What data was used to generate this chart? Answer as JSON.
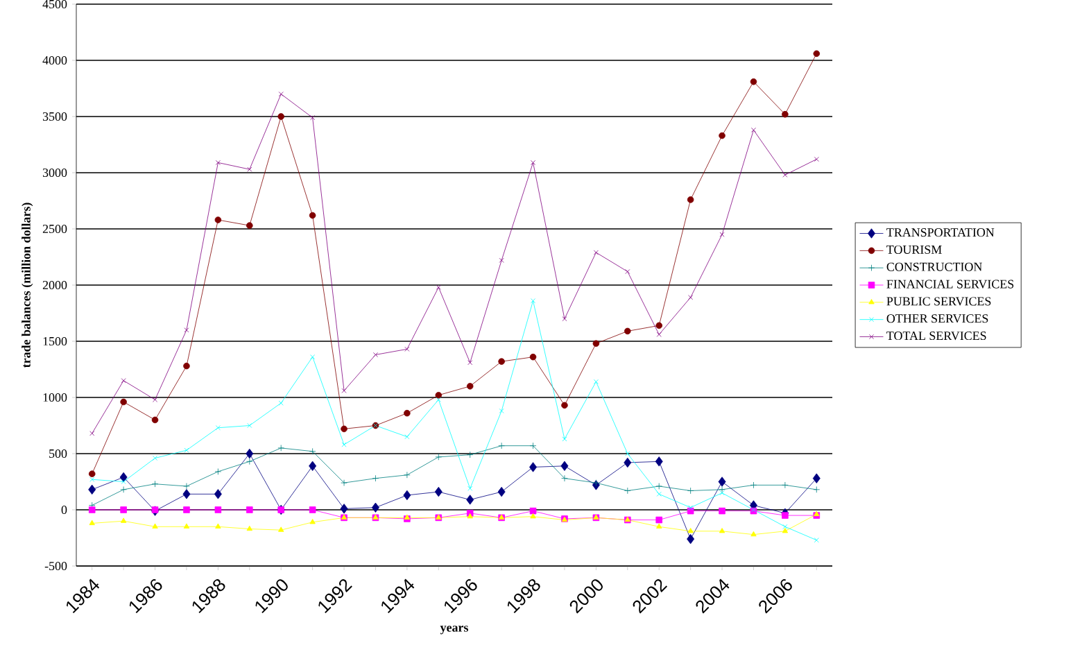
{
  "chart_data": {
    "type": "line",
    "xlabel": "years",
    "ylabel": "trade balances (million dollars)",
    "categories": [
      "1984",
      null,
      "1986",
      null,
      "1988",
      null,
      "1990",
      null,
      "1992",
      null,
      "1994",
      null,
      "1996",
      null,
      "1998",
      null,
      "2000",
      null,
      "2002",
      null,
      "2004",
      null,
      "2006",
      null
    ],
    "ylim": [
      -500,
      4500
    ],
    "yticks": [
      -500,
      0,
      500,
      1000,
      1500,
      2000,
      2500,
      3000,
      3500,
      4000,
      4500
    ],
    "grid": "y",
    "legend": "right",
    "line_style": "solid",
    "series": [
      {
        "name": "TRANSPORTATION",
        "color": "#000080",
        "marker": "diamond",
        "values": [
          180,
          290,
          -10,
          140,
          140,
          500,
          0,
          390,
          10,
          20,
          130,
          160,
          90,
          160,
          380,
          390,
          220,
          420,
          430,
          -260,
          250,
          40,
          -30,
          280
        ]
      },
      {
        "name": "TOURISM",
        "color": "#800000",
        "marker": "circle",
        "values": [
          320,
          960,
          800,
          1280,
          2580,
          2530,
          3500,
          2620,
          720,
          750,
          860,
          1020,
          1100,
          1320,
          1360,
          930,
          1480,
          1590,
          1640,
          2760,
          3330,
          3810,
          3520,
          4060
        ]
      },
      {
        "name": "CONSTRUCTION",
        "color": "#008080",
        "marker": "plus",
        "values": [
          40,
          180,
          230,
          210,
          340,
          430,
          550,
          520,
          240,
          280,
          310,
          470,
          490,
          570,
          570,
          280,
          240,
          170,
          210,
          170,
          180,
          220,
          220,
          180
        ]
      },
      {
        "name": "FINANCIAL SERVICES",
        "color": "#ff00ff",
        "marker": "square",
        "values": [
          0,
          0,
          0,
          0,
          0,
          0,
          0,
          0,
          -70,
          -70,
          -80,
          -70,
          -30,
          -70,
          -10,
          -80,
          -70,
          -90,
          -90,
          -10,
          -10,
          -10,
          -50,
          -50
        ]
      },
      {
        "name": "PUBLIC SERVICES",
        "color": "#ffff00",
        "marker": "triangle",
        "values": [
          -120,
          -100,
          -150,
          -150,
          -150,
          -170,
          -180,
          -110,
          -70,
          -70,
          -70,
          -70,
          -60,
          -70,
          -60,
          -90,
          -70,
          -90,
          -150,
          -190,
          -190,
          -220,
          -190,
          -40
        ]
      },
      {
        "name": "OTHER SERVICES",
        "color": "#00ffff",
        "marker": "cross",
        "values": [
          270,
          250,
          460,
          530,
          730,
          750,
          950,
          1360,
          580,
          750,
          650,
          980,
          190,
          880,
          1860,
          630,
          1140,
          500,
          140,
          20,
          150,
          0,
          -150,
          -270
        ]
      },
      {
        "name": "TOTAL SERVICES",
        "color": "#800080",
        "marker": "cross",
        "values": [
          680,
          1150,
          980,
          1600,
          3090,
          3030,
          3700,
          3490,
          1060,
          1380,
          1430,
          1980,
          1310,
          2220,
          3090,
          1700,
          2290,
          2120,
          1560,
          1890,
          2450,
          3380,
          2980,
          3120
        ]
      }
    ]
  }
}
